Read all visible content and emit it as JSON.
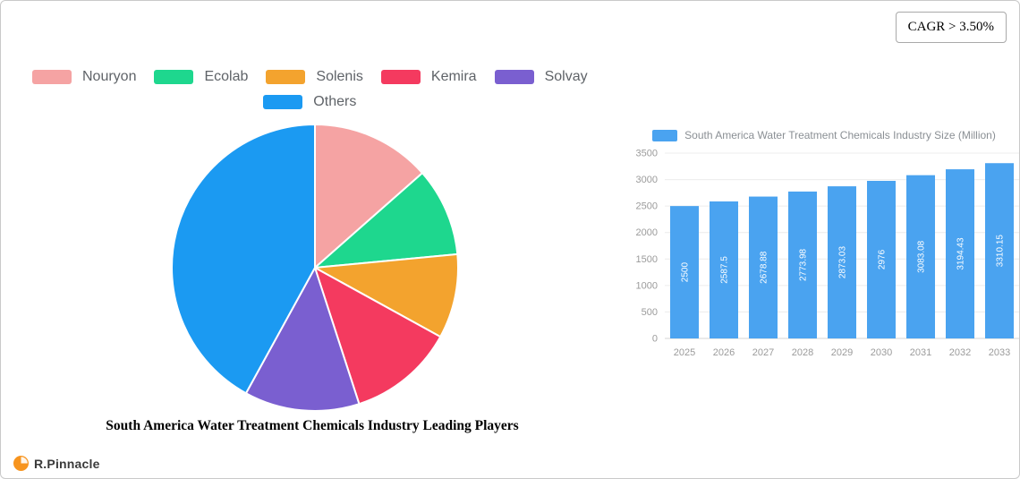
{
  "cagr_badge": "CAGR > 3.50%",
  "logo": {
    "text": "R.Pinnacle",
    "icon": "pie-mark-icon",
    "icon_color": "#f7941e"
  },
  "chart_data": [
    {
      "type": "pie",
      "title": "South America Water Treatment Chemicals Industry Leading Players",
      "labels": [
        "Nouryon",
        "Ecolab",
        "Solenis",
        "Kemira",
        "Solvay",
        "Others"
      ],
      "values": [
        13.5,
        10,
        9.5,
        12,
        13,
        42
      ],
      "colors": [
        "#f5a3a3",
        "#1ed78e",
        "#f3a32e",
        "#f43a5f",
        "#7a5fd0",
        "#1b9af2"
      ],
      "legend_rows": [
        [
          "Nouryon",
          "Ecolab",
          "Solenis",
          "Kemira",
          "Solvay"
        ],
        [
          "Others"
        ]
      ],
      "start_angle_deg": -90,
      "direction": "clockwise",
      "slice_border_color": "#ffffff"
    },
    {
      "type": "bar",
      "legend": "South America Water Treatment Chemicals Industry Size (Million)",
      "legend_position": "top",
      "categories": [
        "2025",
        "2026",
        "2027",
        "2028",
        "2029",
        "2030",
        "2031",
        "2032",
        "2033"
      ],
      "values": [
        2500,
        2587.5,
        2678.88,
        2773.98,
        2873.03,
        2976,
        3083.08,
        3194.43,
        3310.15
      ],
      "value_labels": [
        "2500",
        "2587.5",
        "2678.88",
        "2773.98",
        "2873.03",
        "2976",
        "3083.08",
        "3194.43",
        "3310.15"
      ],
      "bar_color": "#4aa3f0",
      "ylim": [
        0,
        3500
      ],
      "yticks": [
        0,
        500,
        1000,
        1500,
        2000,
        2500,
        3000,
        3500
      ],
      "grid": true
    }
  ]
}
